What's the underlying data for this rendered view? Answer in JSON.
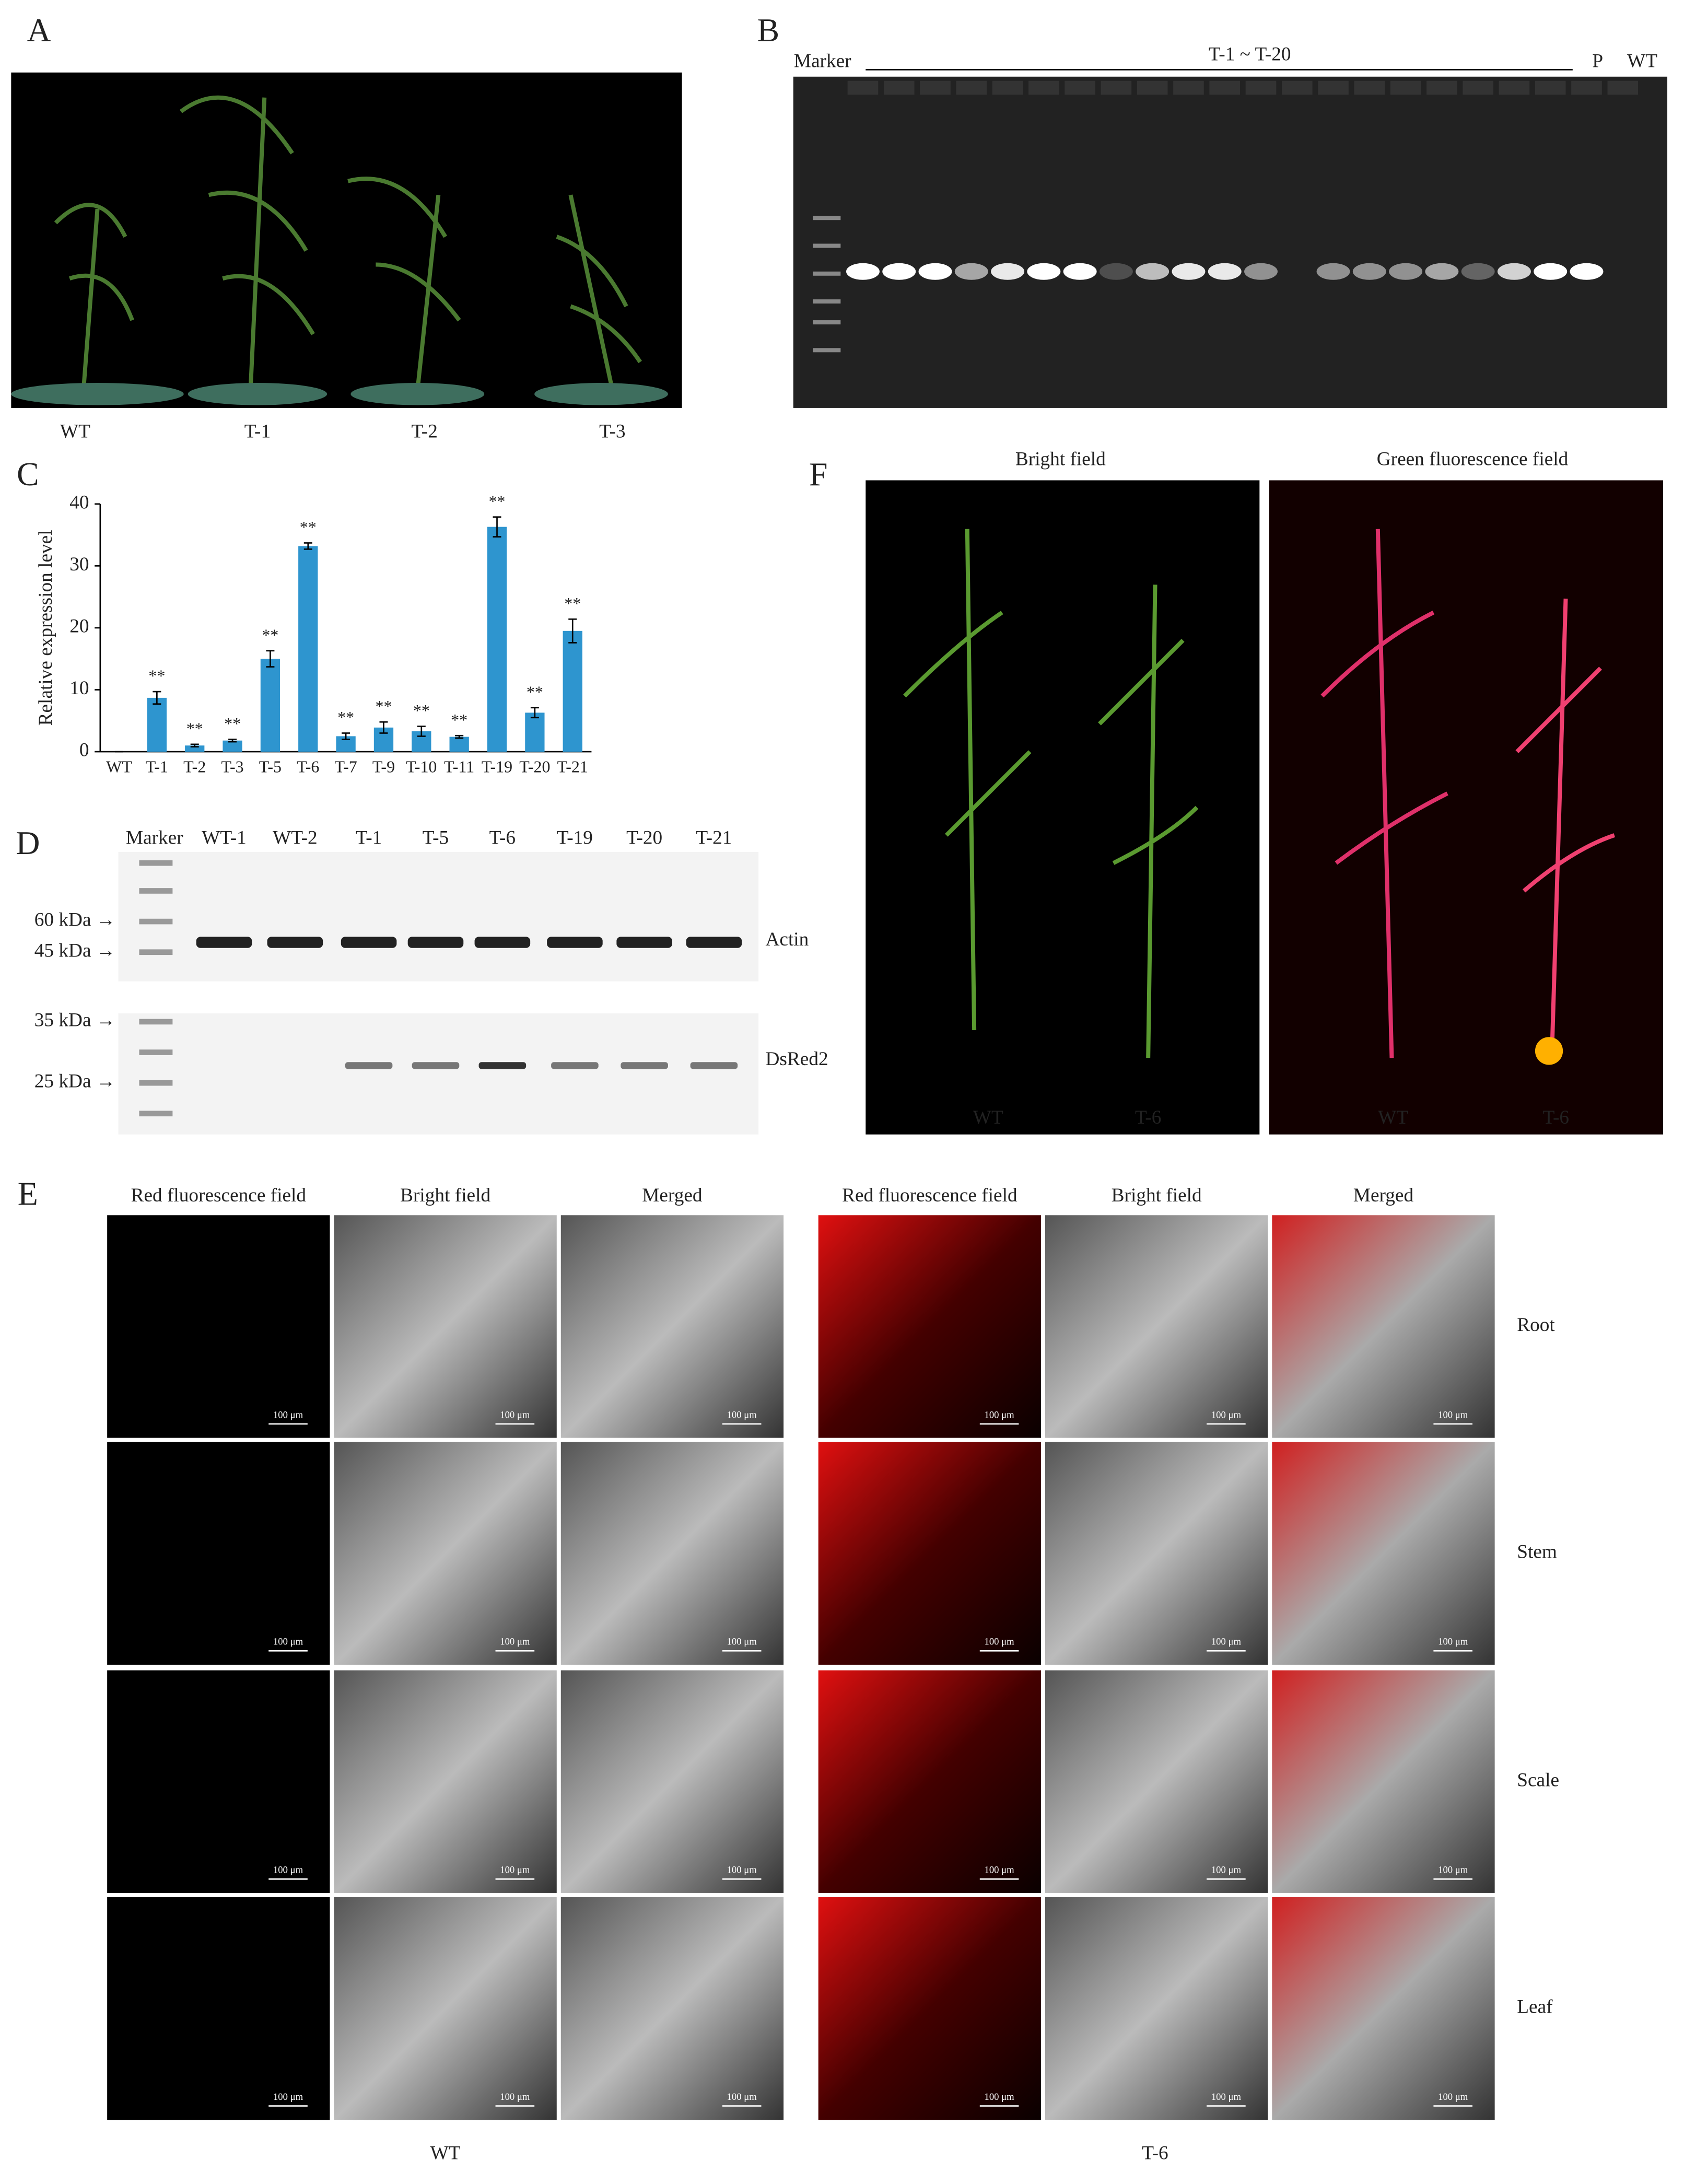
{
  "panel_labels": [
    "A",
    "B",
    "C",
    "D",
    "E",
    "F"
  ],
  "panel_a": {
    "labels": [
      "WT",
      "T-1",
      "T-2",
      "T-3"
    ]
  },
  "panel_b": {
    "marker": "Marker",
    "range": "T-1 ~ T-20",
    "positive": "P",
    "negative": "WT"
  },
  "chart_data": {
    "type": "bar",
    "y_label": "Relative expression level",
    "categories": [
      "WT",
      "T-1",
      "T-2",
      "T-3",
      "T-5",
      "T-6",
      "T-7",
      "T-9",
      "T-10",
      "T-11",
      "T-19",
      "T-20",
      "T-21"
    ],
    "values": [
      0,
      8.7,
      1.0,
      1.8,
      15.0,
      33.2,
      2.5,
      3.9,
      3.3,
      2.4,
      36.3,
      6.3,
      19.5
    ],
    "errors": [
      0,
      1.0,
      0.2,
      0.2,
      1.3,
      0.5,
      0.5,
      0.9,
      0.8,
      0.2,
      1.6,
      0.8,
      1.9
    ],
    "significance": [
      null,
      "**",
      "**",
      "**",
      "**",
      "**",
      "**",
      "**",
      "**",
      "**",
      "**",
      "**",
      "**"
    ],
    "color": "#2e95cf",
    "ylim": [
      0,
      40
    ],
    "yticks": [
      0,
      10,
      20,
      30,
      40
    ],
    "grid": false
  },
  "panel_d": {
    "lanes": [
      "Marker",
      "WT-1",
      "WT-2",
      "T-1",
      "T-5",
      "T-6",
      "T-19",
      "T-20",
      "T-21"
    ],
    "sizes": [
      "60 kDa →",
      "45 kDa →",
      "35 kDa →",
      "25 kDa →"
    ],
    "proteins": [
      "Actin",
      "DsRed2"
    ]
  },
  "panel_e": {
    "columns": [
      "Red fluorescence field",
      "Bright field",
      "Merged"
    ],
    "rows": [
      "Root",
      "Stem",
      "Scale",
      "Leaf"
    ],
    "groups": [
      "WT",
      "T-6"
    ],
    "scale_bar": "100 μm"
  },
  "panel_f": {
    "columns": [
      "Bright field",
      "Green fluorescence field"
    ],
    "plants": [
      "WT",
      "T-6"
    ]
  }
}
